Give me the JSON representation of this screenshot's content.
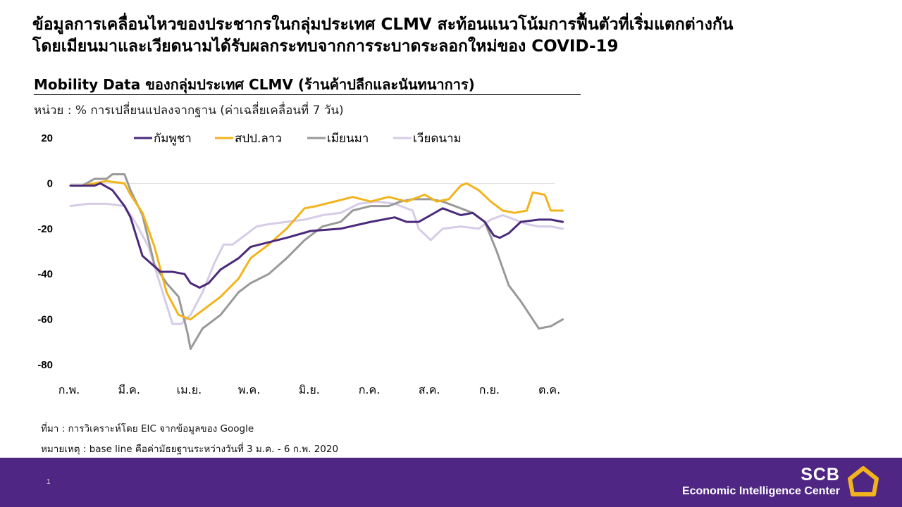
{
  "headline": {
    "line1": "ข้อมูลการเคลื่อนไหวของประชากรในกลุ่มประเทศ CLMV สะท้อนแนวโน้มการฟื้นตัวที่เริ่มแตกต่างกัน",
    "line2": "โดยเมียนมาและเวียดนามได้รับผลกระทบจากการระบาดระลอกใหม่ของ COVID-19"
  },
  "chart_header": {
    "title": "Mobility Data ของกลุ่มประเทศ CLMV (ร้านค้าปลีกและนันทนาการ)",
    "unit": "หน่วย : % การเปลี่ยนแปลงจากฐาน (ค่าเฉลี่ยเคลื่อนที่ 7 วัน)"
  },
  "notes": {
    "source": "ที่มา : การวิเคราะห์โดย EIC จากข้อมูลของ Google",
    "remark": "หมายเหตุ : base line คือค่ามัธยฐานระหว่างวันที่ 3 ม.ค. - 6 ก.พ. 2020"
  },
  "footer": {
    "page_number": "1",
    "brand_name": "SCB",
    "brand_unit": "Economic Intelligence Center"
  },
  "colors": {
    "cambodia": "#4b2a7b",
    "laos": "#f2b41c",
    "myanmar": "#999999",
    "vietnam": "#d6cce8",
    "footer": "#4f2683",
    "logo": "#f2b41c"
  },
  "chart_data": {
    "type": "line",
    "title": "Mobility Data ของกลุ่มประเทศ CLMV (ร้านค้าปลีกและนันทนาการ)",
    "ylabel": "% การเปลี่ยนแปลงจากฐาน (ค่าเฉลี่ยเคลื่อนที่ 7 วัน)",
    "ylim": [
      -80,
      20
    ],
    "yticks": [
      "20",
      "0",
      "-20",
      "-40",
      "-60",
      "-80"
    ],
    "ytick_values": [
      20,
      0,
      -20,
      -40,
      -60,
      -80
    ],
    "x_ticks": [
      "ก.พ.",
      "มี.ค.",
      "เม.ย.",
      "พ.ค.",
      "มิ.ย.",
      "ก.ค.",
      "ส.ค.",
      "ก.ย.",
      "ต.ค."
    ],
    "x_tick_months": [
      0,
      1,
      2,
      3,
      4,
      5,
      6,
      7,
      8
    ],
    "x_range_months": [
      0,
      8.3
    ],
    "legend_position": "top",
    "series": [
      {
        "name": "กัมพูชา",
        "color": "#4b2a7b",
        "x": [
          0,
          0.2,
          0.4,
          0.5,
          0.7,
          0.9,
          1.0,
          1.2,
          1.5,
          1.7,
          1.9,
          2.0,
          2.15,
          2.3,
          2.5,
          2.8,
          3.0,
          3.3,
          3.6,
          4.0,
          4.5,
          5.0,
          5.4,
          5.6,
          5.8,
          6.0,
          6.2,
          6.5,
          6.7,
          6.9,
          7.05,
          7.15,
          7.3,
          7.5,
          7.8,
          8.0,
          8.2
        ],
        "y": [
          -1,
          -1,
          -1,
          0,
          -3,
          -10,
          -15,
          -32,
          -39,
          -39,
          -40,
          -44,
          -46,
          -44,
          -38,
          -33,
          -28,
          -26,
          -24,
          -21,
          -20,
          -17,
          -15,
          -17,
          -17,
          -14,
          -11,
          -14,
          -13,
          -17,
          -23,
          -24,
          -22,
          -17,
          -16,
          -16,
          -17
        ]
      },
      {
        "name": "สปป.ลาว",
        "color": "#f2b41c",
        "x": [
          0,
          0.2,
          0.4,
          0.6,
          0.9,
          1.0,
          1.2,
          1.4,
          1.6,
          1.8,
          2.0,
          2.2,
          2.5,
          2.8,
          3.0,
          3.3,
          3.6,
          3.9,
          4.1,
          4.4,
          4.7,
          5.0,
          5.3,
          5.6,
          5.9,
          6.1,
          6.3,
          6.5,
          6.6,
          6.8,
          7.0,
          7.2,
          7.4,
          7.6,
          7.7,
          7.9,
          8.0,
          8.2
        ],
        "y": [
          -1,
          -1,
          0,
          1,
          0,
          -5,
          -13,
          -28,
          -48,
          -58,
          -60,
          -56,
          -50,
          -42,
          -33,
          -27,
          -20,
          -11,
          -10,
          -8,
          -6,
          -8,
          -6,
          -8,
          -5,
          -8,
          -7,
          -1,
          0,
          -3,
          -8,
          -12,
          -13,
          -12,
          -4,
          -5,
          -12,
          -12
        ]
      },
      {
        "name": "เมียนมา",
        "color": "#999999",
        "x": [
          0,
          0.2,
          0.4,
          0.6,
          0.7,
          0.9,
          1.0,
          1.2,
          1.4,
          1.6,
          1.8,
          1.95,
          2.0,
          2.2,
          2.5,
          2.8,
          3.0,
          3.3,
          3.6,
          3.9,
          4.2,
          4.5,
          4.7,
          5.0,
          5.3,
          5.5,
          5.7,
          6.0,
          6.2,
          6.5,
          6.7,
          6.9,
          7.1,
          7.3,
          7.5,
          7.8,
          8.0,
          8.2
        ],
        "y": [
          -1,
          -1,
          2,
          2,
          4,
          4,
          -3,
          -14,
          -36,
          -44,
          -50,
          -66,
          -73,
          -64,
          -58,
          -48,
          -44,
          -40,
          -33,
          -25,
          -19,
          -17,
          -12,
          -10,
          -10,
          -8,
          -7,
          -7,
          -8,
          -11,
          -13,
          -17,
          -30,
          -45,
          -52,
          -64,
          -63,
          -60
        ]
      },
      {
        "name": "เวียดนาม",
        "color": "#d6cce8",
        "x": [
          0,
          0.3,
          0.6,
          0.9,
          1.1,
          1.3,
          1.5,
          1.7,
          1.85,
          2.0,
          2.2,
          2.4,
          2.55,
          2.7,
          2.9,
          3.1,
          3.3,
          3.6,
          3.9,
          4.2,
          4.5,
          4.8,
          5.1,
          5.4,
          5.7,
          5.8,
          6.0,
          6.2,
          6.5,
          6.8,
          7.0,
          7.2,
          7.4,
          7.6,
          7.8,
          8.0,
          8.2
        ],
        "y": [
          -10,
          -9,
          -9,
          -10,
          -18,
          -28,
          -45,
          -62,
          -62,
          -58,
          -48,
          -35,
          -27,
          -27,
          -23,
          -19,
          -18,
          -17,
          -16,
          -14,
          -13,
          -9,
          -8,
          -9,
          -12,
          -20,
          -25,
          -20,
          -19,
          -20,
          -16,
          -14,
          -16,
          -18,
          -19,
          -19,
          -20
        ]
      }
    ]
  }
}
